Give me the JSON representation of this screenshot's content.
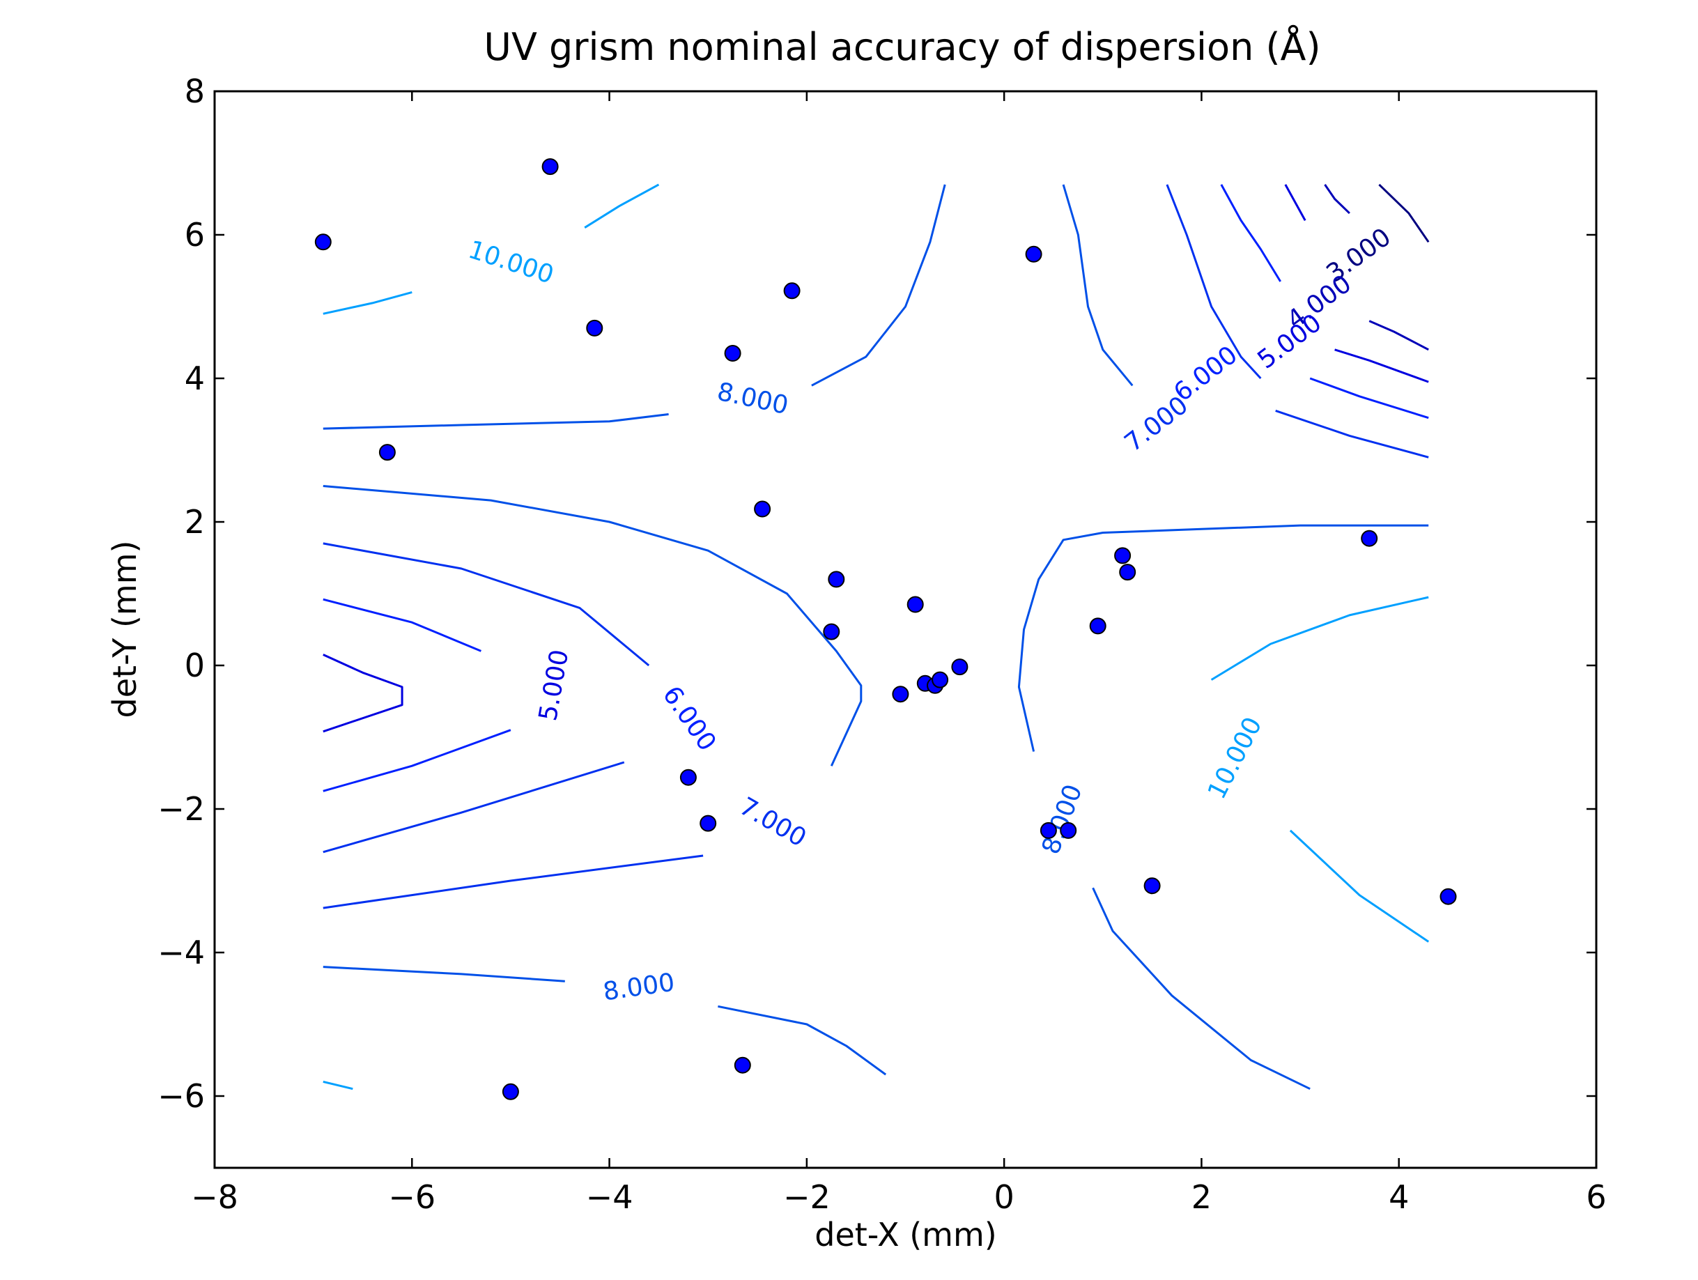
{
  "chart_data": {
    "type": "scatter",
    "title": "UV grism nominal accuracy of dispersion (Å)",
    "xlabel": "det-X (mm)",
    "ylabel": "det-Y (mm)",
    "xlim": [
      -8,
      6
    ],
    "ylim": [
      -7,
      8
    ],
    "xticks": [
      -8,
      -6,
      -4,
      -2,
      0,
      2,
      4,
      6
    ],
    "yticks": [
      -6,
      -4,
      -2,
      0,
      2,
      4,
      6,
      8
    ],
    "xtick_labels": [
      "−8",
      "−6",
      "−4",
      "−2",
      "0",
      "2",
      "4",
      "6"
    ],
    "ytick_labels": [
      "−6",
      "−4",
      "−2",
      "0",
      "2",
      "4",
      "6",
      "8"
    ],
    "grid": false,
    "legend": "none",
    "points": {
      "color": "#0000ff",
      "x": [
        -6.9,
        -4.6,
        -4.15,
        -6.25,
        -2.75,
        -2.15,
        -2.45,
        0.3,
        -1.75,
        -1.7,
        -0.9,
        -1.05,
        -0.8,
        -0.7,
        -0.65,
        -0.45,
        0.95,
        1.2,
        1.25,
        3.7,
        -3.2,
        -3.0,
        0.45,
        0.65,
        1.5,
        4.5,
        -5.0,
        -2.65
      ],
      "y": [
        5.9,
        6.95,
        4.7,
        2.97,
        4.35,
        5.22,
        2.18,
        5.73,
        0.47,
        1.2,
        0.85,
        -0.4,
        -0.25,
        -0.28,
        -0.2,
        -0.02,
        0.55,
        1.53,
        1.3,
        1.77,
        -1.56,
        -2.2,
        -2.3,
        -2.3,
        -3.07,
        -3.22,
        -5.94,
        -5.57
      ]
    },
    "contours": [
      {
        "level": "3.000",
        "color": "#000080",
        "paths": [
          [
            [
              3.8,
              6.7
            ],
            [
              4.1,
              6.3
            ],
            [
              4.3,
              5.9
            ]
          ]
        ],
        "labels": [
          {
            "text": "3.000",
            "x": 3.6,
            "y": 5.7,
            "angle": 36
          }
        ]
      },
      {
        "level": "4.000",
        "color": "#0000b8",
        "paths": [
          [
            [
              3.25,
              6.7
            ],
            [
              3.35,
              6.5
            ],
            [
              3.5,
              6.3
            ]
          ],
          [
            [
              3.7,
              4.8
            ],
            [
              3.95,
              4.65
            ],
            [
              4.3,
              4.4
            ]
          ]
        ],
        "labels": [
          {
            "text": "4.000",
            "x": 3.2,
            "y": 5.05,
            "angle": 36
          }
        ]
      },
      {
        "level": "5.000",
        "color": "#0000e0",
        "paths": [
          [
            [
              2.85,
              6.7
            ],
            [
              2.95,
              6.45
            ],
            [
              3.05,
              6.2
            ]
          ],
          [
            [
              3.35,
              4.4
            ],
            [
              3.7,
              4.25
            ],
            [
              4.3,
              3.95
            ]
          ],
          [
            [
              -6.9,
              0.15
            ],
            [
              -6.5,
              -0.1
            ],
            [
              -6.1,
              -0.3
            ],
            [
              -6.1,
              -0.55
            ],
            [
              -6.9,
              -0.92
            ]
          ]
        ],
        "labels": [
          {
            "text": "5.000",
            "x": 2.9,
            "y": 4.5,
            "angle": 37
          },
          {
            "text": "5.000",
            "x": -4.55,
            "y": -0.28,
            "angle": 80
          }
        ]
      },
      {
        "level": "6.000",
        "color": "#0020ff",
        "paths": [
          [
            [
              2.2,
              6.7
            ],
            [
              2.4,
              6.2
            ],
            [
              2.6,
              5.8
            ],
            [
              2.8,
              5.35
            ]
          ],
          [
            [
              3.1,
              4.0
            ],
            [
              3.6,
              3.75
            ],
            [
              4.3,
              3.45
            ]
          ],
          [
            [
              -6.9,
              0.92
            ],
            [
              -6.0,
              0.6
            ],
            [
              -5.3,
              0.2
            ]
          ],
          [
            [
              -5.0,
              -0.9
            ],
            [
              -6.0,
              -1.4
            ],
            [
              -6.9,
              -1.75
            ]
          ]
        ],
        "labels": [
          {
            "text": "6.000",
            "x": 2.05,
            "y": 4.05,
            "angle": 38
          },
          {
            "text": "6.000",
            "x": -3.2,
            "y": -0.75,
            "angle": -55
          }
        ]
      },
      {
        "level": "7.000",
        "color": "#0030f0",
        "paths": [
          [
            [
              1.65,
              6.7
            ],
            [
              1.85,
              6.0
            ],
            [
              2.1,
              5.0
            ],
            [
              2.4,
              4.3
            ],
            [
              2.6,
              4.0
            ]
          ],
          [
            [
              2.75,
              3.55
            ],
            [
              3.5,
              3.2
            ],
            [
              4.3,
              2.9
            ]
          ],
          [
            [
              -6.9,
              1.7
            ],
            [
              -5.5,
              1.35
            ],
            [
              -4.3,
              0.8
            ],
            [
              -3.6,
              0.0
            ]
          ],
          [
            [
              -3.85,
              -1.35
            ],
            [
              -5.5,
              -2.05
            ],
            [
              -6.9,
              -2.6
            ]
          ],
          [
            [
              -3.05,
              -2.65
            ],
            [
              -5.0,
              -3.0
            ],
            [
              -6.9,
              -3.38
            ]
          ]
        ],
        "labels": [
          {
            "text": "7.000",
            "x": 1.55,
            "y": 3.35,
            "angle": 38
          },
          {
            "text": "7.000",
            "x": -2.35,
            "y": -2.2,
            "angle": -30
          }
        ]
      },
      {
        "level": "8.000",
        "color": "#0050e8",
        "paths": [
          [
            [
              -6.9,
              3.3
            ],
            [
              -5.5,
              3.35
            ],
            [
              -4.0,
              3.4
            ],
            [
              -3.4,
              3.5
            ]
          ],
          [
            [
              -1.95,
              3.9
            ],
            [
              -1.4,
              4.3
            ],
            [
              -1.0,
              5.0
            ],
            [
              -0.75,
              5.9
            ],
            [
              -0.6,
              6.7
            ]
          ],
          [
            [
              -6.9,
              2.5
            ],
            [
              -5.2,
              2.3
            ],
            [
              -4.0,
              2.0
            ],
            [
              -3.0,
              1.6
            ],
            [
              -2.2,
              1.0
            ],
            [
              -1.7,
              0.2
            ],
            [
              -1.45,
              -0.28
            ],
            [
              -1.45,
              -0.5
            ],
            [
              -1.75,
              -1.4
            ]
          ],
          [
            [
              0.6,
              6.7
            ],
            [
              0.75,
              6.0
            ],
            [
              0.85,
              5.0
            ],
            [
              1.0,
              4.4
            ],
            [
              1.3,
              3.9
            ]
          ],
          [
            [
              4.3,
              1.95
            ],
            [
              3.0,
              1.95
            ],
            [
              2.0,
              1.9
            ],
            [
              1.0,
              1.85
            ],
            [
              0.6,
              1.75
            ],
            [
              0.35,
              1.2
            ],
            [
              0.2,
              0.5
            ],
            [
              0.15,
              -0.3
            ],
            [
              0.3,
              -1.2
            ]
          ],
          [
            [
              -6.9,
              -4.2
            ],
            [
              -5.5,
              -4.3
            ],
            [
              -4.45,
              -4.4
            ]
          ],
          [
            [
              -2.9,
              -4.75
            ],
            [
              -2.0,
              -5.0
            ],
            [
              -1.6,
              -5.3
            ],
            [
              -1.2,
              -5.7
            ]
          ],
          [
            [
              0.9,
              -3.1
            ],
            [
              1.1,
              -3.7
            ],
            [
              1.7,
              -4.6
            ],
            [
              2.5,
              -5.5
            ],
            [
              3.1,
              -5.9
            ]
          ]
        ],
        "labels": [
          {
            "text": "8.000",
            "x": -2.55,
            "y": 3.7,
            "angle": -12
          },
          {
            "text": "8.000",
            "x": -3.7,
            "y": -4.5,
            "angle": 8
          },
          {
            "text": "8.000",
            "x": 0.6,
            "y": -2.15,
            "angle": 70
          }
        ]
      },
      {
        "level": "10.000",
        "color": "#00a0ff",
        "paths": [
          [
            [
              -6.9,
              4.9
            ],
            [
              -6.4,
              5.05
            ],
            [
              -6.0,
              5.2
            ]
          ],
          [
            [
              -4.25,
              6.1
            ],
            [
              -3.9,
              6.4
            ],
            [
              -3.5,
              6.7
            ]
          ],
          [
            [
              2.1,
              -0.2
            ],
            [
              2.7,
              0.3
            ],
            [
              3.5,
              0.7
            ],
            [
              4.3,
              0.95
            ]
          ],
          [
            [
              2.9,
              -2.3
            ],
            [
              3.6,
              -3.2
            ],
            [
              4.3,
              -3.85
            ]
          ],
          [
            [
              -6.9,
              -5.8
            ],
            [
              -6.6,
              -5.9
            ]
          ]
        ],
        "labels": [
          {
            "text": "10.000",
            "x": -5.0,
            "y": 5.6,
            "angle": -18
          },
          {
            "text": "10.000",
            "x": 2.35,
            "y": -1.3,
            "angle": 63
          }
        ]
      }
    ]
  }
}
